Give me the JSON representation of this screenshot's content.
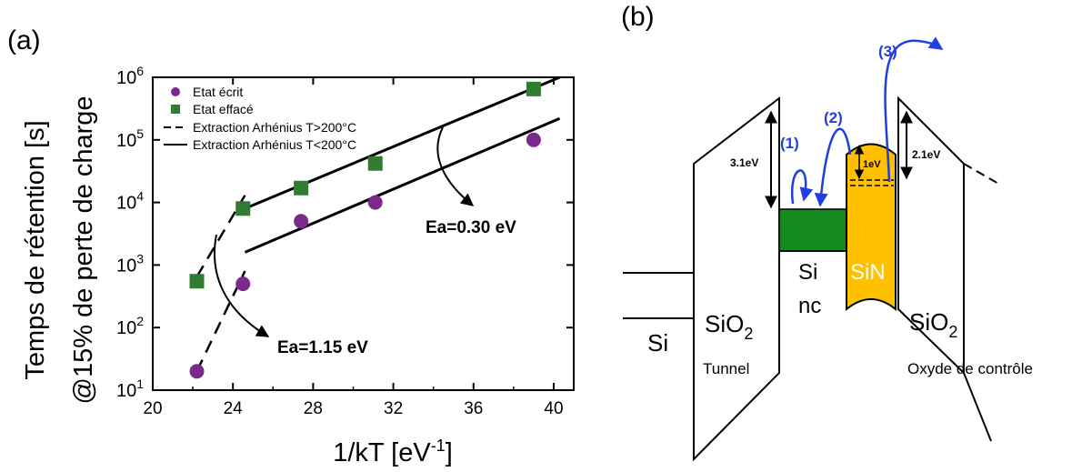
{
  "panel_a": {
    "label": "(a)",
    "ylabel_line1": "Temps de rétention [s]",
    "ylabel_line2": "@15% de perte de charge",
    "xlabel": "1/kT [eV",
    "xlabel_sup": "-1",
    "xlabel_close": "]",
    "annotation_high": "Ea=0.30 eV",
    "annotation_low": "Ea=1.15 eV",
    "legend": {
      "written": "Etat écrit",
      "erased": "Etat effacé",
      "dashed": "Extraction Arhénius T>200°C",
      "solid": "Extraction Arhénius T<200°C"
    }
  },
  "panel_b": {
    "label": "(b)",
    "si": "Si",
    "sio2_tunnel_main": "SiO",
    "sio2_tunnel_sub": "2",
    "tunnel": "Tunnel",
    "si_nc_line1": "Si",
    "si_nc_line2": "nc",
    "sin": "SiN",
    "sio2_control_main": "SiO",
    "sio2_control_sub": "2",
    "control_oxide": "Oxyde de contrôle",
    "barrier_tunnel": "3.1eV",
    "barrier_sin": "1eV",
    "barrier_control": "2.1eV",
    "step1": "(1)",
    "step2": "(2)",
    "step3": "(3)"
  },
  "colors": {
    "written_marker": "#7B2A8C",
    "erased_marker": "#2E7D32",
    "si_nc_fill": "#128A1E",
    "sin_fill": "#FFC000",
    "arrow_blue": "#1F3FE0"
  },
  "chart_data": {
    "type": "scatter",
    "y_scale": "log",
    "xlim": [
      20,
      41
    ],
    "ylim": [
      10,
      1000000
    ],
    "xticks": [
      "20",
      "24",
      "28",
      "32",
      "36",
      "40"
    ],
    "yticks": [
      "10^1",
      "10^2",
      "10^3",
      "10^4",
      "10^5",
      "10^6"
    ],
    "legend_position": "top-left",
    "series": [
      {
        "name": "Etat écrit",
        "marker": "circle",
        "color": "#7B2A8C",
        "points": [
          [
            22.2,
            20
          ],
          [
            24.5,
            500
          ],
          [
            27.4,
            5000
          ],
          [
            31.1,
            10000
          ],
          [
            39.0,
            100000
          ]
        ]
      },
      {
        "name": "Etat effacé",
        "marker": "square",
        "color": "#2E7D32",
        "points": [
          [
            22.2,
            550
          ],
          [
            24.5,
            8000
          ],
          [
            27.4,
            17000
          ],
          [
            31.1,
            42000
          ],
          [
            39.0,
            650000
          ]
        ]
      }
    ],
    "fits": [
      {
        "name": "Extraction Arhénius T>200°C",
        "style": "dashed",
        "points": [
          [
            22.2,
            20
          ],
          [
            24.6,
            800
          ]
        ]
      },
      {
        "name": "Extraction Arhénius T>200°C",
        "style": "dashed",
        "points": [
          [
            22.2,
            650
          ],
          [
            24.6,
            13000
          ]
        ]
      },
      {
        "name": "Extraction Arhénius T<200°C",
        "style": "solid",
        "points": [
          [
            24.6,
            1600
          ],
          [
            40.3,
            220000
          ]
        ]
      },
      {
        "name": "Extraction Arhénius T<200°C",
        "style": "solid",
        "points": [
          [
            24.6,
            8000
          ],
          [
            40.3,
            1000000
          ]
        ]
      }
    ]
  }
}
